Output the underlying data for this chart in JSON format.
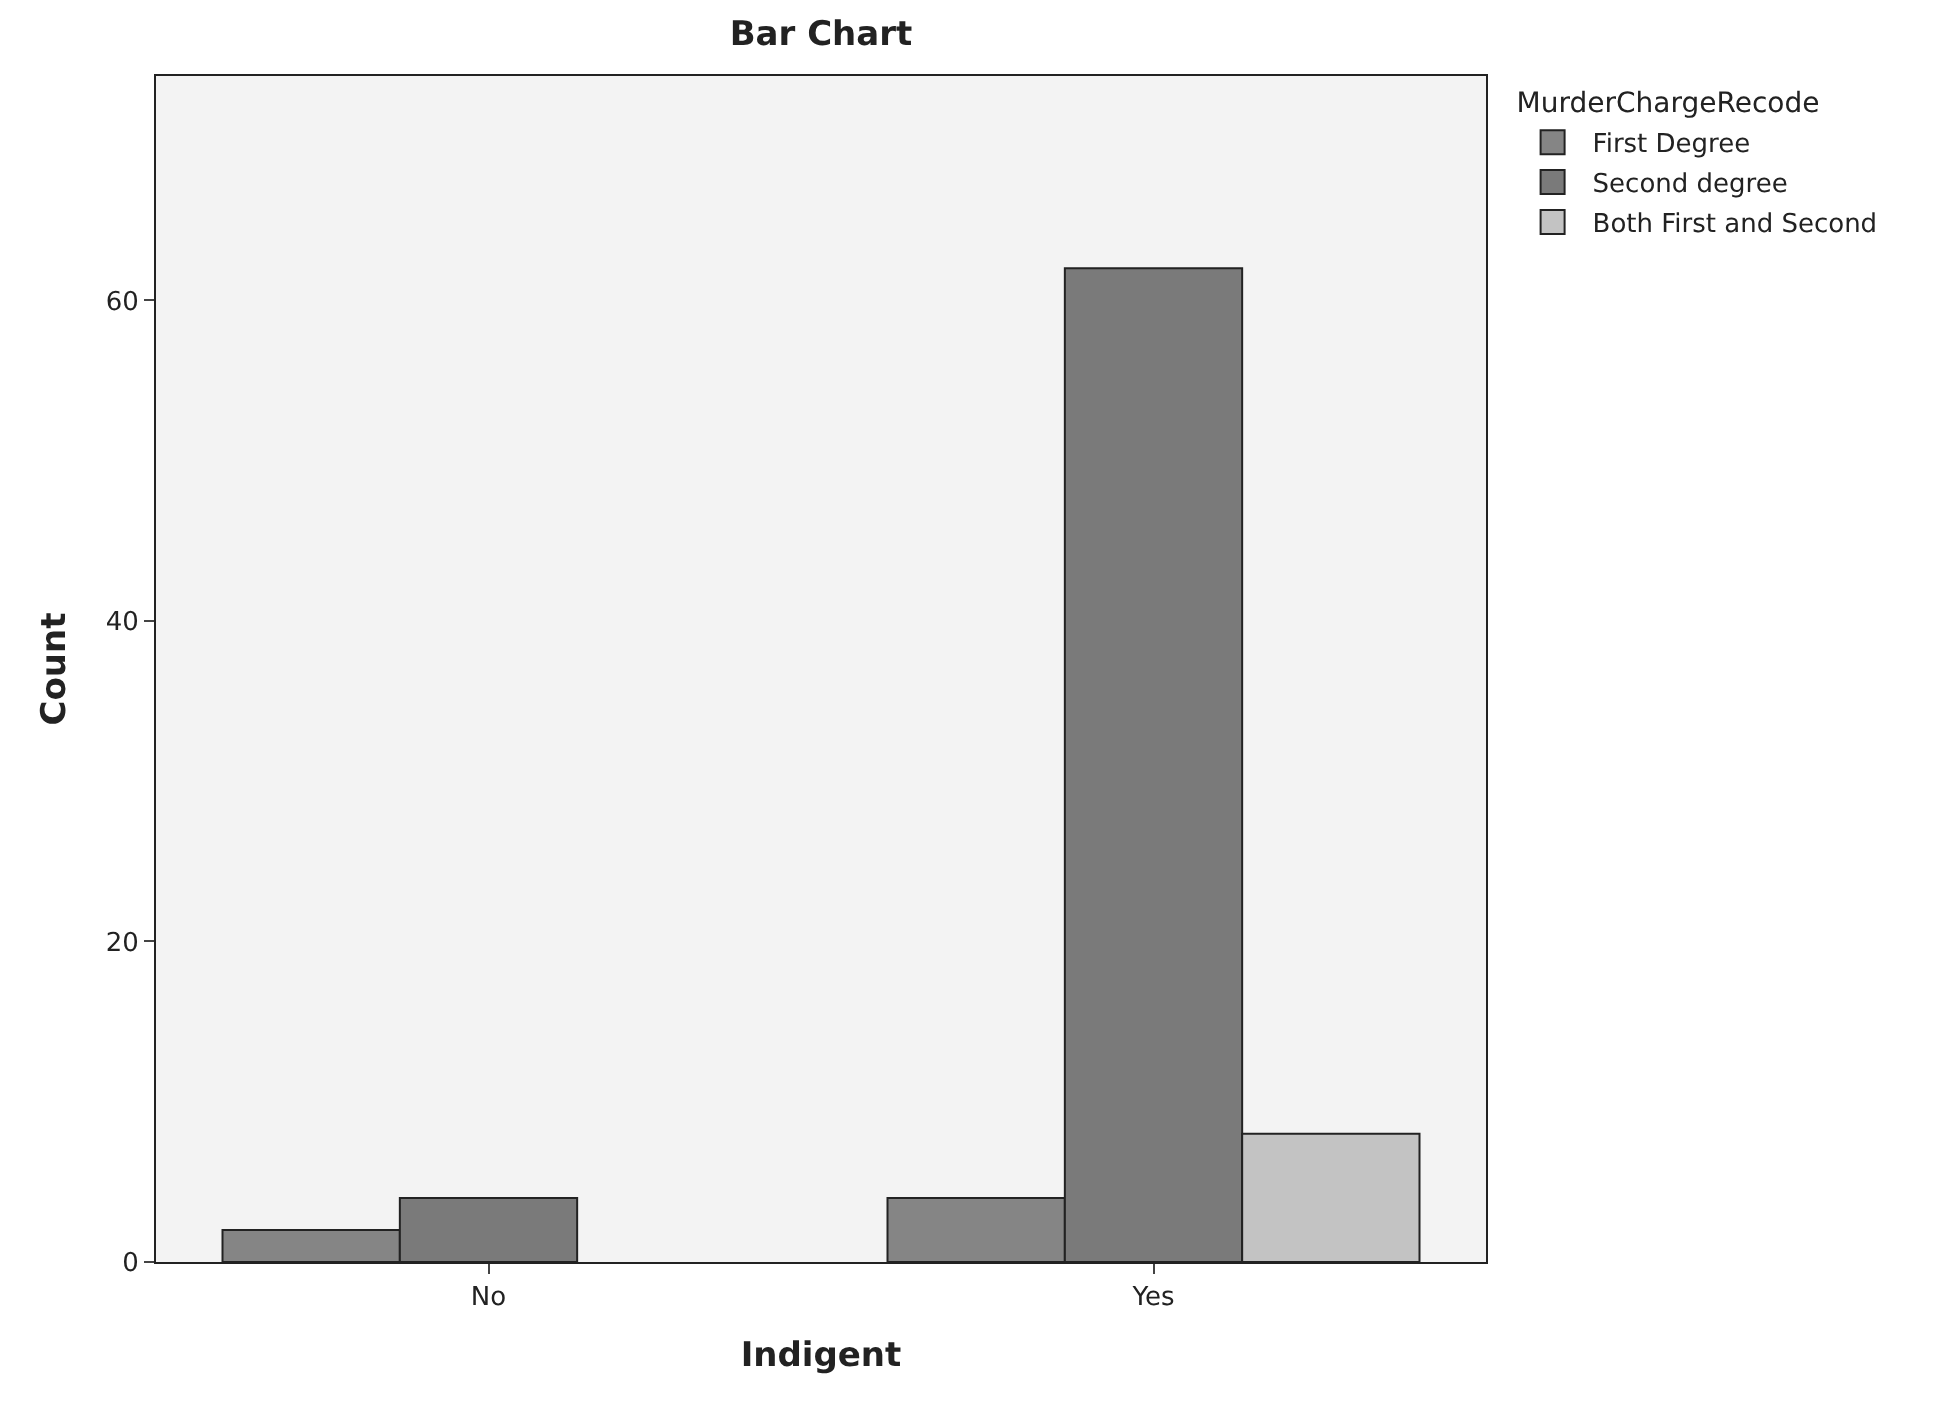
{
  "chart_data": {
    "type": "bar",
    "title": "Bar Chart",
    "xlabel": "Indigent",
    "ylabel": "Count",
    "legend_title": "MurderChargeRecode",
    "categories": [
      "No",
      "Yes"
    ],
    "series": [
      {
        "name": "First Degree",
        "color": "#858585",
        "values": [
          2,
          4
        ]
      },
      {
        "name": "Second degree",
        "color": "#7a7a7a",
        "values": [
          4,
          62
        ]
      },
      {
        "name": "Both First and Second",
        "color": "#c3c3c3",
        "values": [
          null,
          8
        ]
      }
    ],
    "ylim": [
      0,
      74
    ],
    "yticks": [
      0,
      20,
      40,
      60
    ],
    "grid": false,
    "legend": "top right"
  }
}
